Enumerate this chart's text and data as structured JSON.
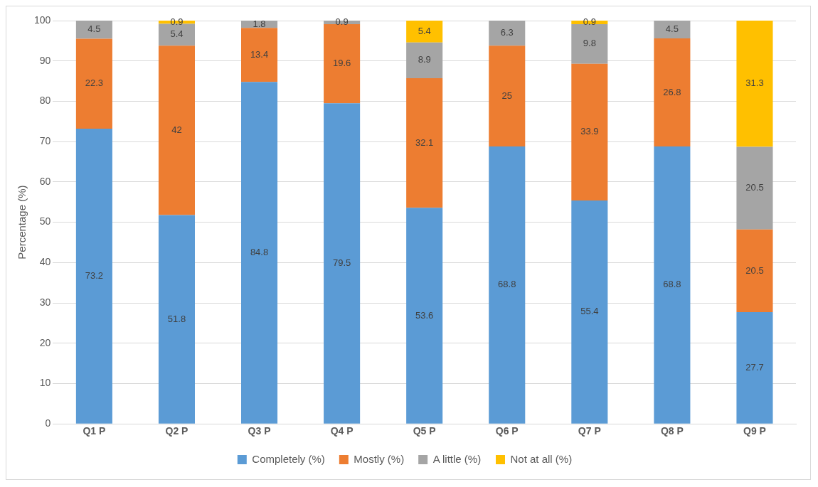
{
  "chart_data": {
    "type": "bar",
    "ylabel": "Percentage (%)",
    "categories": [
      "Q1 P",
      "Q2 P",
      "Q3 P",
      "Q4 P",
      "Q5 P",
      "Q6 P",
      "Q7 P",
      "Q8 P",
      "Q9 P"
    ],
    "series": [
      {
        "name": "Completely (%)",
        "color": "#5b9bd5",
        "values": [
          73.2,
          51.8,
          84.8,
          79.5,
          53.6,
          68.8,
          55.4,
          68.8,
          27.7
        ]
      },
      {
        "name": "Mostly (%)",
        "color": "#ed7d31",
        "values": [
          22.3,
          42,
          13.4,
          19.6,
          32.1,
          25,
          33.9,
          26.8,
          20.5
        ]
      },
      {
        "name": "A little (%)",
        "color": "#a5a5a5",
        "values": [
          4.5,
          5.4,
          1.8,
          0.9,
          8.9,
          6.3,
          9.8,
          4.5,
          20.5
        ]
      },
      {
        "name": "Not at all (%)",
        "color": "#ffc000",
        "values": [
          null,
          0.9,
          null,
          null,
          5.4,
          null,
          0.9,
          null,
          31.3
        ]
      }
    ],
    "stacked": true,
    "ylim": [
      0,
      100
    ],
    "yticks": [
      0,
      10,
      20,
      30,
      40,
      50,
      60,
      70,
      80,
      90,
      100
    ],
    "grid": "y",
    "legend": "bottom",
    "data_labels": true
  }
}
